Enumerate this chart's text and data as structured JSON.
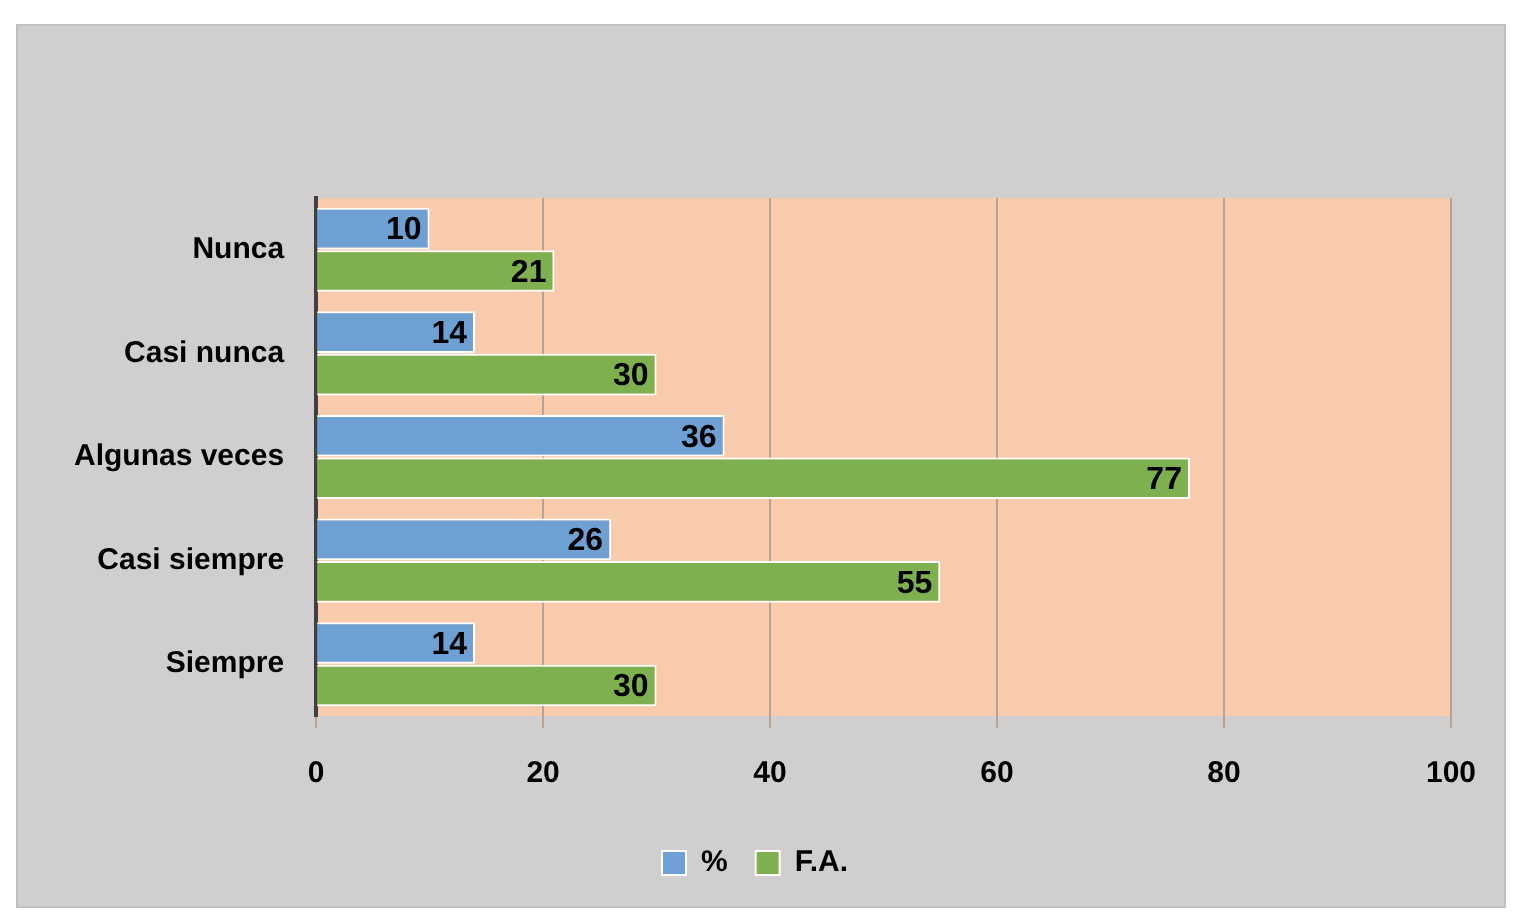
{
  "chart_data": {
    "type": "bar",
    "orientation": "horizontal",
    "categories": [
      "Nunca",
      "Casi nunca",
      "Algunas veces",
      "Casi siempre",
      "Siempre"
    ],
    "series": [
      {
        "name": "%",
        "color": "#6fa0d4",
        "values": [
          10,
          14,
          36,
          26,
          14
        ]
      },
      {
        "name": "F.A.",
        "color": "#7fb050",
        "values": [
          21,
          30,
          77,
          55,
          30
        ]
      }
    ],
    "xlim": [
      0,
      100
    ],
    "xticks": [
      0,
      20,
      40,
      60,
      80,
      100
    ],
    "grid": "x",
    "legend": "bottom",
    "data_labels": true
  }
}
